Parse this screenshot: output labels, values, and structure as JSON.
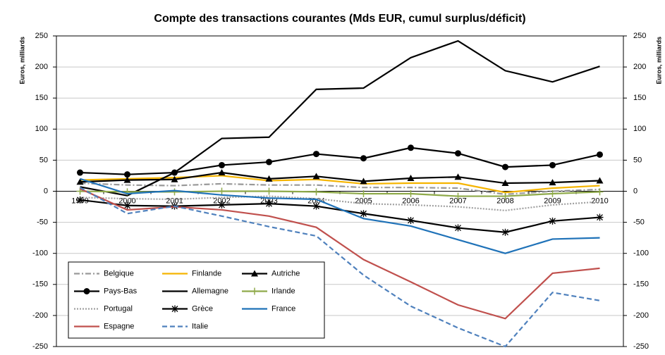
{
  "chart_data": {
    "type": "line",
    "title": "Compte des transactions courantes (Mds EUR, cumul surplus/déficit)",
    "ylabel": "Euros, milliards",
    "y2label": "Euros, milliards",
    "categories": [
      "1999",
      "2000",
      "2001",
      "2002",
      "2003",
      "2004",
      "2005",
      "2006",
      "2007",
      "2008",
      "2009",
      "2010"
    ],
    "ylim": [
      -250,
      250
    ],
    "yticks": [
      -250,
      -200,
      -150,
      -100,
      -50,
      0,
      50,
      100,
      150,
      200,
      250
    ],
    "y2lim": [
      -250,
      250
    ],
    "y2ticks": [
      -250,
      -200,
      -150,
      -100,
      -50,
      0,
      50,
      100,
      150,
      200,
      250
    ],
    "grid": true,
    "legend": "lower left",
    "series": [
      {
        "name": "Belgique",
        "color": "#999999",
        "dash": "dash-dot",
        "values": [
          13,
          10,
          9,
          12,
          10,
          10,
          6,
          6,
          5,
          -5,
          0,
          3
        ]
      },
      {
        "name": "Finlande",
        "color": "#f5b400",
        "values": [
          18,
          20,
          22,
          25,
          17,
          19,
          12,
          13,
          13,
          -2,
          5,
          9
        ]
      },
      {
        "name": "Autriche",
        "color": "#000000",
        "marker": "triangle",
        "values": [
          15,
          18,
          19,
          30,
          20,
          24,
          16,
          21,
          23,
          13,
          14,
          17
        ]
      },
      {
        "name": "Pays-Bas",
        "color": "#000000",
        "marker": "circle",
        "values": [
          30,
          27,
          30,
          42,
          47,
          60,
          53,
          70,
          61,
          39,
          42,
          59
        ]
      },
      {
        "name": "Allemagne",
        "color": "#000000",
        "values": [
          7,
          -7,
          30,
          85,
          87,
          164,
          166,
          215,
          242,
          194,
          176,
          201
        ]
      },
      {
        "name": "Irlande",
        "color": "#8faa4a",
        "marker": "plus",
        "values": [
          0,
          -1,
          -1,
          0,
          0,
          -1,
          -4,
          -4,
          -8,
          -8,
          -4,
          -1
        ]
      },
      {
        "name": "Portugal",
        "color": "#a0a0a0",
        "dash": "dotted",
        "values": [
          -10,
          -12,
          -13,
          -10,
          -8,
          -12,
          -20,
          -22,
          -25,
          -31,
          -22,
          -17
        ]
      },
      {
        "name": "Grèce",
        "color": "#000000",
        "marker": "star",
        "values": [
          -14,
          -23,
          -24,
          -22,
          -20,
          -24,
          -36,
          -47,
          -59,
          -66,
          -48,
          -42
        ]
      },
      {
        "name": "France",
        "color": "#1f72b8",
        "values": [
          20,
          -4,
          1,
          -6,
          -11,
          -13,
          -44,
          -56,
          -78,
          -100,
          -77,
          -75
        ]
      },
      {
        "name": "Espagne",
        "color": "#c0504d",
        "values": [
          4,
          -30,
          -25,
          -30,
          -40,
          -58,
          -110,
          -146,
          -183,
          -205,
          -132,
          -124
        ]
      },
      {
        "name": "Italie",
        "color": "#4f81bd",
        "dash": "dashed",
        "values": [
          6,
          -36,
          -24,
          -40,
          -57,
          -72,
          -135,
          -185,
          -220,
          -250,
          -163,
          -176
        ]
      }
    ]
  }
}
